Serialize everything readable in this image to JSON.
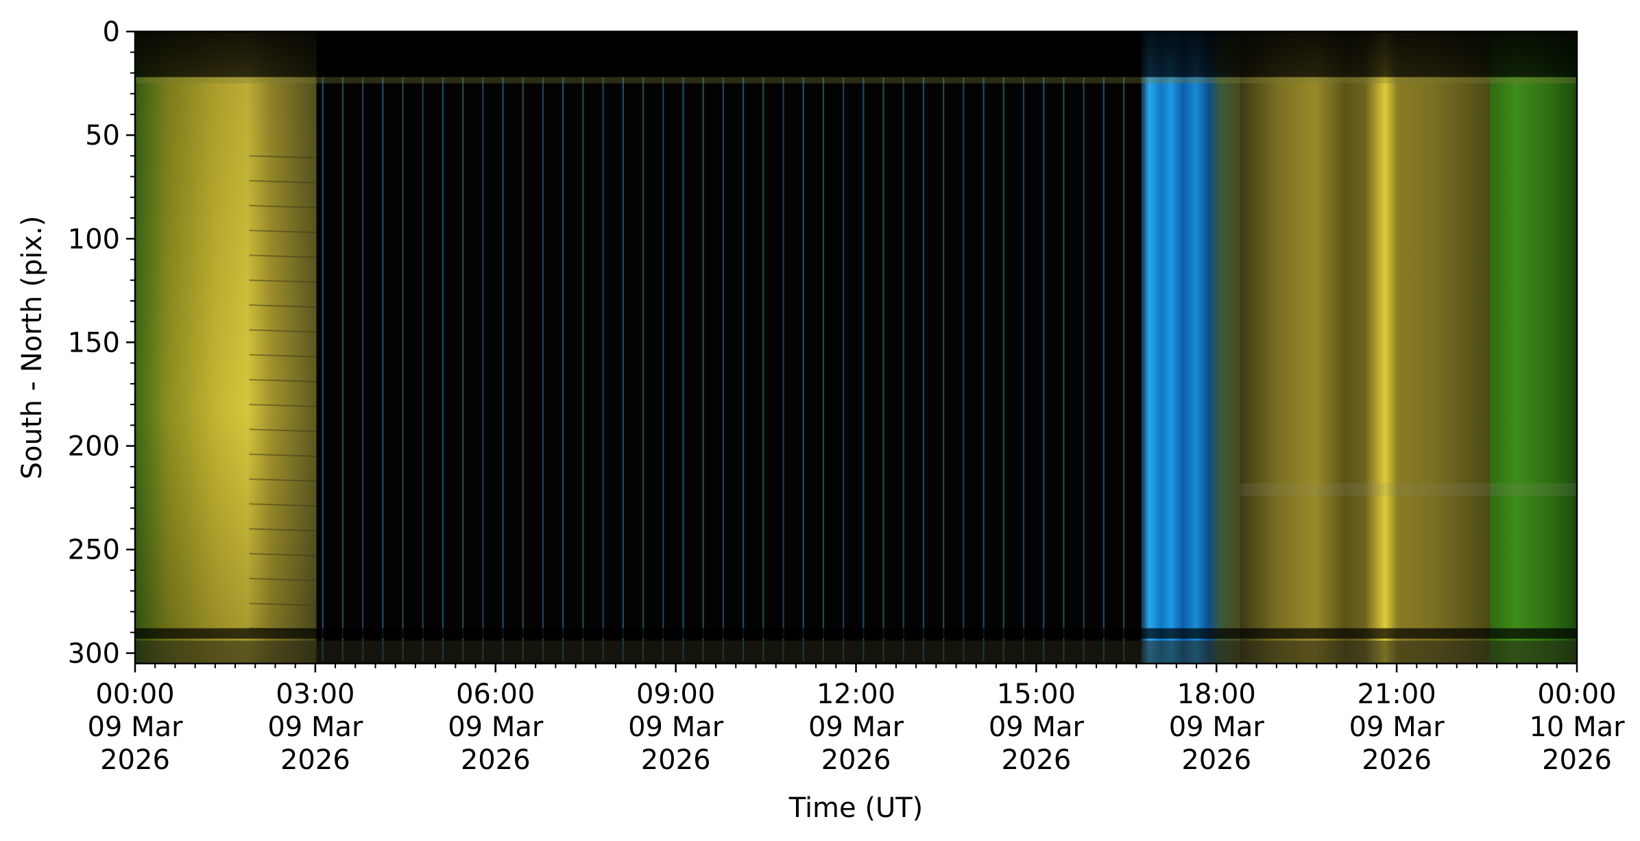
{
  "chart_data": {
    "type": "heatmap",
    "title": "",
    "xlabel": "Time (UT)",
    "ylabel": "South - North (pix.)",
    "y_axis_inverted": true,
    "ylim": [
      305,
      0
    ],
    "y_ticks": [
      0,
      50,
      100,
      150,
      200,
      250,
      300
    ],
    "xlim_hours": [
      0,
      24
    ],
    "x_ticks": [
      {
        "hour": 0,
        "lines": [
          "00:00",
          "09 Mar",
          "2026"
        ]
      },
      {
        "hour": 3,
        "lines": [
          "03:00",
          "09 Mar",
          "2026"
        ]
      },
      {
        "hour": 6,
        "lines": [
          "06:00",
          "09 Mar",
          "2026"
        ]
      },
      {
        "hour": 9,
        "lines": [
          "09:00",
          "09 Mar",
          "2026"
        ]
      },
      {
        "hour": 12,
        "lines": [
          "12:00",
          "09 Mar",
          "2026"
        ]
      },
      {
        "hour": 15,
        "lines": [
          "15:00",
          "09 Mar",
          "2026"
        ]
      },
      {
        "hour": 18,
        "lines": [
          "18:00",
          "09 Mar",
          "2026"
        ]
      },
      {
        "hour": 21,
        "lines": [
          "21:00",
          "09 Mar",
          "2026"
        ]
      },
      {
        "hour": 24,
        "lines": [
          "00:00",
          "10 Mar",
          "2026"
        ]
      }
    ],
    "x_minor_tick_step_hours": 0.333333,
    "y_minor_tick_step": 10,
    "grid": false,
    "legend": "none",
    "bands": [
      {
        "start_hour": 0.0,
        "end_hour": 3.02,
        "pattern": "yellow-green-aurora"
      },
      {
        "start_hour": 3.02,
        "end_hour": 16.75,
        "pattern": "dark-striped"
      },
      {
        "start_hour": 16.75,
        "end_hour": 18.4,
        "pattern": "blue-twilight"
      },
      {
        "start_hour": 18.4,
        "end_hour": 22.55,
        "pattern": "yellow-aurora"
      },
      {
        "start_hour": 22.55,
        "end_hour": 24.0,
        "pattern": "green-aurora"
      }
    ],
    "colors": {
      "yellow": "#d4c438",
      "green": "#3e8a1a",
      "blue": "#1e90d8",
      "dark": "#030303"
    }
  }
}
